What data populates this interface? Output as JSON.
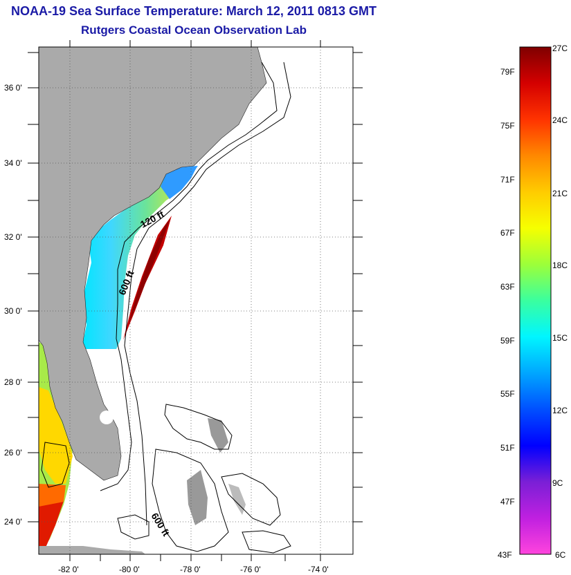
{
  "header": {
    "title": "NOAA-19 Sea Surface Temperature:  March 12, 2011 0813 GMT",
    "subtitle": "Rutgers Coastal Ocean Observation Lab"
  },
  "map": {
    "lat_ticks": [
      "36 0'",
      "34 0'",
      "32 0'",
      "30 0'",
      "28 0'",
      "26 0'",
      "24 0'"
    ],
    "lon_ticks": [
      "-82 0'",
      "-80 0'",
      "-78 0'",
      "-76 0'",
      "-74 0'"
    ],
    "contour_labels": [
      "120 ft",
      "600 ft",
      "600 ft"
    ],
    "colors": {
      "land": "#aaaaaa",
      "ocean_nodata": "#ffffff"
    }
  },
  "colorbar": {
    "fahrenheit": [
      "79F",
      "75F",
      "71F",
      "67F",
      "63F",
      "59F",
      "55F",
      "51F",
      "47F",
      "43F"
    ],
    "celsius": [
      "27C",
      "24C",
      "21C",
      "18C",
      "15C",
      "12C",
      "9C",
      "6C"
    ],
    "gradient": [
      "#7f0000",
      "#d40000",
      "#ff3300",
      "#ff8800",
      "#ffcc00",
      "#f6ff00",
      "#9cff3a",
      "#3aff9f",
      "#00f6ff",
      "#00a6ff",
      "#0050ff",
      "#0000ff",
      "#7a1fd6",
      "#c020e0",
      "#ff44dd"
    ]
  }
}
